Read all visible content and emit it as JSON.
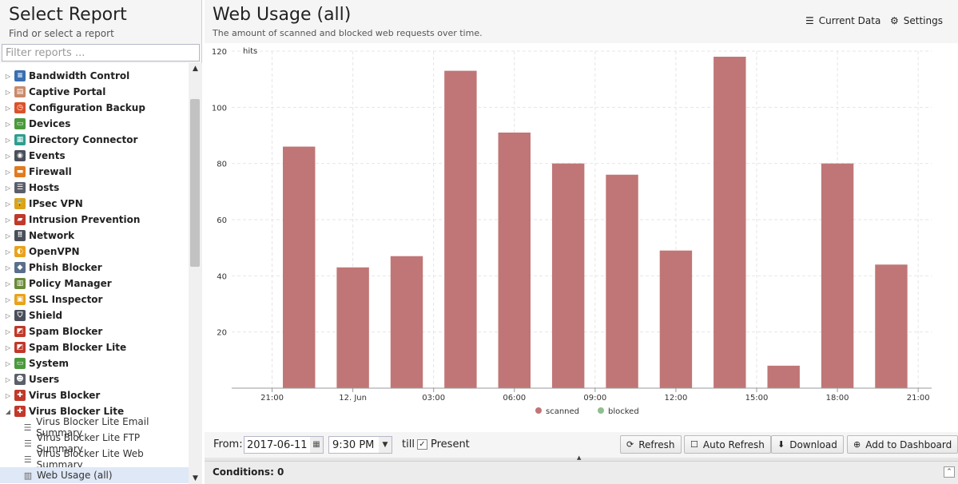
{
  "sidebar": {
    "title": "Select Report",
    "subtitle": "Find or select a report",
    "filter_placeholder": "Filter reports ...",
    "items": [
      {
        "label": "Bandwidth Control",
        "icon": "bandwidth-control-icon",
        "color": "#3a6fb0",
        "glyph": "≡"
      },
      {
        "label": "Captive Portal",
        "icon": "captive-portal-icon",
        "color": "#c98a6a",
        "glyph": "▤"
      },
      {
        "label": "Configuration Backup",
        "icon": "configuration-backup-icon",
        "color": "#d9532c",
        "glyph": "◷"
      },
      {
        "label": "Devices",
        "icon": "devices-icon",
        "color": "#4a9a3c",
        "glyph": "▭"
      },
      {
        "label": "Directory Connector",
        "icon": "directory-connector-icon",
        "color": "#2f9e8f",
        "glyph": "▦"
      },
      {
        "label": "Events",
        "icon": "events-icon",
        "color": "#4a4f5a",
        "glyph": "◉"
      },
      {
        "label": "Firewall",
        "icon": "firewall-icon",
        "color": "#e07b1f",
        "glyph": "▬"
      },
      {
        "label": "Hosts",
        "icon": "hosts-icon",
        "color": "#5a5f6a",
        "glyph": "☰"
      },
      {
        "label": "IPsec VPN",
        "icon": "ipsec-vpn-icon",
        "color": "#d9a31c",
        "glyph": "🔒"
      },
      {
        "label": "Intrusion Prevention",
        "icon": "intrusion-prevention-icon",
        "color": "#c0392b",
        "glyph": "▰"
      },
      {
        "label": "Network",
        "icon": "network-icon",
        "color": "#4a4f5a",
        "glyph": "⠿"
      },
      {
        "label": "OpenVPN",
        "icon": "openvpn-icon",
        "color": "#e8a31c",
        "glyph": "◐"
      },
      {
        "label": "Phish Blocker",
        "icon": "phish-blocker-icon",
        "color": "#5a6f8a",
        "glyph": "◆"
      },
      {
        "label": "Policy Manager",
        "icon": "policy-manager-icon",
        "color": "#6a8a3a",
        "glyph": "▥"
      },
      {
        "label": "SSL Inspector",
        "icon": "ssl-inspector-icon",
        "color": "#e8a31c",
        "glyph": "▣"
      },
      {
        "label": "Shield",
        "icon": "shield-icon",
        "color": "#4a4f5a",
        "glyph": "⛉"
      },
      {
        "label": "Spam Blocker",
        "icon": "spam-blocker-icon",
        "color": "#c0392b",
        "glyph": "◩"
      },
      {
        "label": "Spam Blocker Lite",
        "icon": "spam-blocker-lite-icon",
        "color": "#c0392b",
        "glyph": "◩"
      },
      {
        "label": "System",
        "icon": "system-icon",
        "color": "#4a9a3c",
        "glyph": "▭"
      },
      {
        "label": "Users",
        "icon": "users-icon",
        "color": "#5a5f6a",
        "glyph": "☻"
      },
      {
        "label": "Virus Blocker",
        "icon": "virus-blocker-icon",
        "color": "#c0392b",
        "glyph": "✚"
      },
      {
        "label": "Virus Blocker Lite",
        "icon": "virus-blocker-lite-icon",
        "color": "#c0392b",
        "glyph": "✚"
      }
    ],
    "children": [
      {
        "label": "Virus Blocker Lite Email Summary",
        "icon": "text-report-icon",
        "glyph": "☰"
      },
      {
        "label": "Virus Blocker Lite FTP Summary",
        "icon": "text-report-icon",
        "glyph": "☰"
      },
      {
        "label": "Virus Blocker Lite Web Summary",
        "icon": "text-report-icon",
        "glyph": "☰"
      },
      {
        "label": "Web Usage (all)",
        "icon": "bar-chart-icon",
        "glyph": "▥"
      }
    ]
  },
  "report": {
    "title": "Web Usage (all)",
    "description": "The amount of scanned and blocked web requests over time.",
    "current_data_label": "Current Data",
    "settings_label": "Settings"
  },
  "chart_data": {
    "type": "bar",
    "ylabel": "hits",
    "ylim": [
      0,
      120
    ],
    "yticks": [
      20,
      40,
      60,
      80,
      100,
      120
    ],
    "x_tick_labels": [
      "21:00",
      "12. Jun",
      "03:00",
      "06:00",
      "09:00",
      "12:00",
      "15:00",
      "18:00",
      "21:00"
    ],
    "x_tick_hours": [
      21,
      24,
      27,
      30,
      33,
      36,
      39,
      42,
      45
    ],
    "x_range_hours": [
      19.5,
      45.5
    ],
    "bar_width_hours": 1.2,
    "series": [
      {
        "name": "scanned",
        "color": "#c07676",
        "x_hours": [
          22,
          24,
          26,
          28,
          30,
          32,
          34,
          36,
          38,
          40,
          42,
          44
        ],
        "values": [
          86,
          43,
          47,
          113,
          91,
          80,
          76,
          49,
          118,
          8,
          80,
          44
        ]
      },
      {
        "name": "blocked",
        "color": "#8fbf8f",
        "x_hours": [],
        "values": []
      }
    ],
    "legend": "bottom-center",
    "grid": true
  },
  "controls": {
    "from_label": "From:",
    "date_value": "2017-06-11",
    "time_value": "9:30 PM",
    "till_label": "till",
    "present_label": "Present",
    "refresh_label": "Refresh",
    "auto_refresh_label": "Auto Refresh",
    "download_label": "Download",
    "add_dashboard_label": "Add to Dashboard"
  },
  "conditions": {
    "label": "Conditions: 0"
  }
}
